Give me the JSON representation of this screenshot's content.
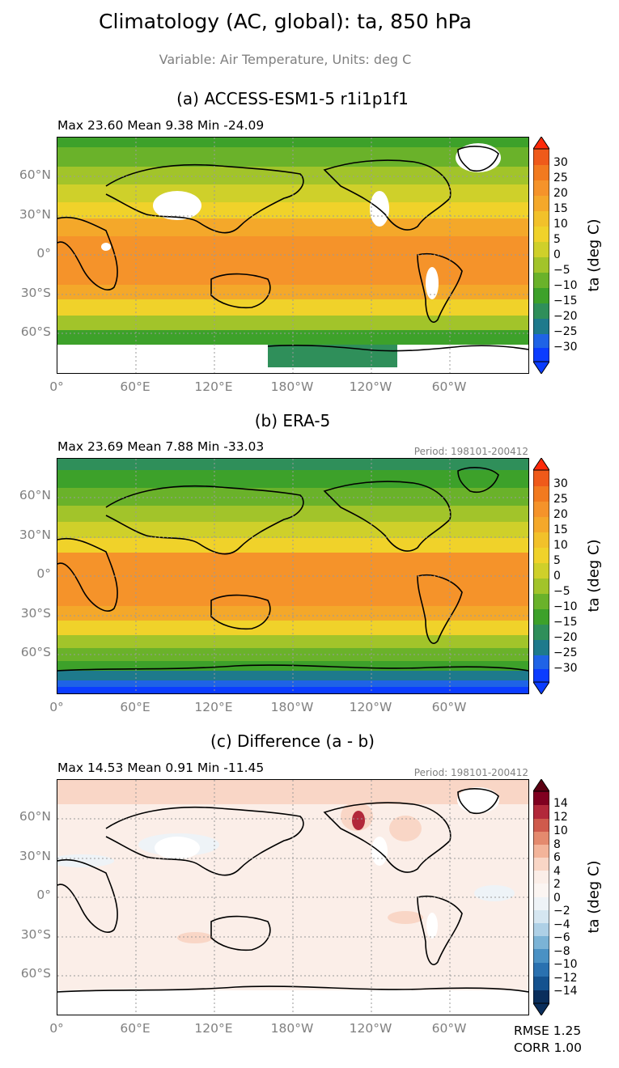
{
  "figure": {
    "title": "Climatology (AC, global): ta, 850 hPa",
    "subtitle": "Variable: Air Temperature, Units: deg C"
  },
  "panels": [
    {
      "title": "(a) ACCESS-ESM1-5 r1i1p1f1",
      "stats": "Max 23.60 Mean 9.38 Min -24.09",
      "period": "",
      "colorbar_label": "ta (deg C)",
      "colorbar_ticks": [
        "30",
        "25",
        "20",
        "15",
        "10",
        "5",
        "0",
        "−5",
        "−10",
        "−15",
        "−20",
        "−25",
        "−30"
      ]
    },
    {
      "title": "(b) ERA-5",
      "stats": "Max 23.69 Mean 7.88 Min -33.03",
      "period": "Period: 198101-200412",
      "colorbar_label": "ta (deg C)",
      "colorbar_ticks": [
        "30",
        "25",
        "20",
        "15",
        "10",
        "5",
        "0",
        "−5",
        "−10",
        "−15",
        "−20",
        "−25",
        "−30"
      ]
    },
    {
      "title": "(c) Difference (a - b)",
      "stats": "Max 14.53 Mean 0.91 Min -11.45",
      "period": "Period: 198101-200412",
      "colorbar_label": "ta (deg C)",
      "colorbar_ticks": [
        "14",
        "12",
        "10",
        "8",
        "6",
        "4",
        "2",
        "0",
        "−2",
        "−4",
        "−6",
        "−8",
        "−10",
        "−12",
        "−14"
      ]
    }
  ],
  "axes": {
    "x_ticks": [
      "0°",
      "60°E",
      "120°E",
      "180°W",
      "120°W",
      "60°W"
    ],
    "y_ticks": [
      "60°N",
      "30°N",
      "0°",
      "30°S",
      "60°S"
    ]
  },
  "metrics": {
    "rmse": "RMSE 1.25",
    "corr": "CORR 1.00"
  },
  "colors": {
    "temp_scale": [
      "#0b3cff",
      "#1f63e6",
      "#1e7a8c",
      "#2f8f5a",
      "#3da12a",
      "#6ab22a",
      "#a2c42a",
      "#cfd02a",
      "#f0d22a",
      "#f2c12a",
      "#f4a82a",
      "#f5932a",
      "#f27a1f",
      "#ef5a1a",
      "#ff2a0a"
    ],
    "diff_scale": [
      "#0a2e5c",
      "#14528f",
      "#2a71b0",
      "#4a91c4",
      "#7bb3d6",
      "#aed0e6",
      "#d5e6f1",
      "#eef3f7",
      "#fbeee8",
      "#f9d6c6",
      "#f3b49a",
      "#e48a6e",
      "#cf5a4c",
      "#b2283a",
      "#800020",
      "#5c0012"
    ],
    "land_coast": "#000000"
  },
  "chart_data": [
    {
      "type": "heatmap",
      "title": "(a) ACCESS-ESM1-5 r1i1p1f1",
      "variable": "ta",
      "units": "deg C",
      "level": "850 hPa",
      "stats": {
        "max": 23.6,
        "mean": 9.38,
        "min": -24.09
      },
      "colorbar": {
        "min": -33,
        "max": 33,
        "ticks": [
          30,
          25,
          20,
          15,
          10,
          5,
          0,
          -5,
          -10,
          -15,
          -20,
          -25,
          -30
        ]
      },
      "zonal_profile_lat": [
        75,
        60,
        45,
        30,
        15,
        0,
        -15,
        -30,
        -45,
        -60,
        -70
      ],
      "zonal_profile_value": [
        -10,
        -3,
        5,
        13,
        19,
        20,
        19,
        13,
        3,
        -6,
        -15
      ]
    },
    {
      "type": "heatmap",
      "title": "(b) ERA-5",
      "variable": "ta",
      "units": "deg C",
      "level": "850 hPa",
      "period": "198101-200412",
      "stats": {
        "max": 23.69,
        "mean": 7.88,
        "min": -33.03
      },
      "colorbar": {
        "min": -33,
        "max": 33,
        "ticks": [
          30,
          25,
          20,
          15,
          10,
          5,
          0,
          -5,
          -10,
          -15,
          -20,
          -25,
          -30
        ]
      },
      "zonal_profile_lat": [
        75,
        60,
        45,
        30,
        15,
        0,
        -15,
        -30,
        -45,
        -60,
        -70,
        -80
      ],
      "zonal_profile_value": [
        -12,
        -5,
        3,
        12,
        18,
        19,
        18,
        12,
        2,
        -7,
        -18,
        -30
      ]
    },
    {
      "type": "heatmap",
      "title": "(c) Difference (a - b)",
      "variable": "ta",
      "units": "deg C",
      "period": "198101-200412",
      "stats": {
        "max": 14.53,
        "mean": 0.91,
        "min": -11.45
      },
      "colorbar": {
        "min": -15,
        "max": 15,
        "ticks": [
          14,
          12,
          10,
          8,
          6,
          4,
          2,
          0,
          -2,
          -4,
          -6,
          -8,
          -10,
          -12,
          -14
        ]
      },
      "rmse": 1.25,
      "corr": 1.0
    }
  ]
}
